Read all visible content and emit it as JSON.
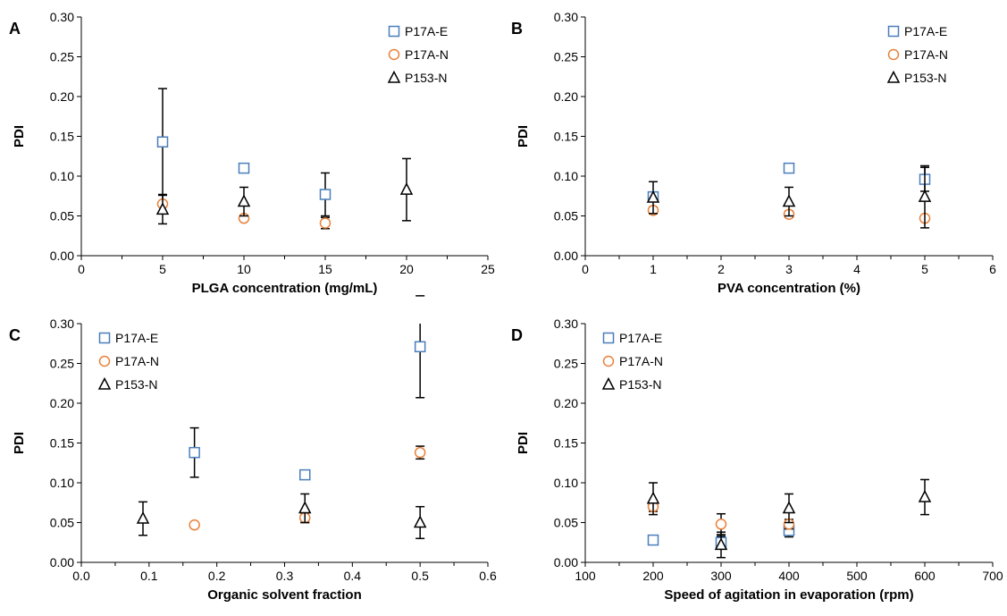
{
  "colors": {
    "P17A-E": "#4a7ebb",
    "P17A-N": "#e8813a",
    "P153-N": "#000000",
    "axis": "#000000"
  },
  "chart_data": [
    {
      "type": "scatter",
      "panel": "A",
      "xlabel": "PLGA concentration  (mg/mL)",
      "ylabel": "PDI",
      "xlim": [
        0,
        25
      ],
      "xticks": [
        0,
        5,
        10,
        15,
        20,
        25
      ],
      "xtick_labels": [
        "0",
        "5",
        "10",
        "15",
        "20",
        "25"
      ],
      "ylim": [
        0,
        0.3
      ],
      "yticks": [
        0,
        0.05,
        0.1,
        0.15,
        0.2,
        0.25,
        0.3
      ],
      "ytick_labels": [
        "0.00",
        "0.05",
        "0.10",
        "0.15",
        "0.20",
        "0.25",
        "0.30"
      ],
      "legend": "top-right",
      "series": [
        {
          "name": "P17A-E",
          "marker": "square",
          "points": [
            {
              "x": 5,
              "y": 0.143,
              "err": 0.067
            },
            {
              "x": 10,
              "y": 0.11,
              "err": 0.003
            },
            {
              "x": 15,
              "y": 0.077,
              "err": 0.027
            }
          ]
        },
        {
          "name": "P17A-N",
          "marker": "circle",
          "points": [
            {
              "x": 5,
              "y": 0.065,
              "err": 0.012
            },
            {
              "x": 10,
              "y": 0.047,
              "err": 0.003
            },
            {
              "x": 15,
              "y": 0.041,
              "err": 0.007
            }
          ]
        },
        {
          "name": "P153-N",
          "marker": "triangle",
          "points": [
            {
              "x": 5,
              "y": 0.058,
              "err": 0.018
            },
            {
              "x": 10,
              "y": 0.068,
              "err": 0.018
            },
            {
              "x": 20,
              "y": 0.083,
              "err": 0.039
            }
          ]
        }
      ]
    },
    {
      "type": "scatter",
      "panel": "B",
      "xlabel": "PVA concentration  (%)",
      "ylabel": "PDI",
      "xlim": [
        0,
        6
      ],
      "xticks": [
        0,
        1,
        2,
        3,
        4,
        5,
        6
      ],
      "xtick_labels": [
        "0",
        "1",
        "2",
        "3",
        "4",
        "5",
        "6"
      ],
      "ylim": [
        0,
        0.3
      ],
      "yticks": [
        0,
        0.05,
        0.1,
        0.15,
        0.2,
        0.25,
        0.3
      ],
      "ytick_labels": [
        "0.00",
        "0.05",
        "0.10",
        "0.15",
        "0.20",
        "0.25",
        "0.30"
      ],
      "legend": "top-right",
      "series": [
        {
          "name": "P17A-E",
          "marker": "square",
          "points": [
            {
              "x": 1,
              "y": 0.074,
              "err": 0.006
            },
            {
              "x": 3,
              "y": 0.11,
              "err": 0.003
            },
            {
              "x": 5,
              "y": 0.096,
              "err": 0.015
            }
          ]
        },
        {
          "name": "P17A-N",
          "marker": "circle",
          "points": [
            {
              "x": 1,
              "y": 0.057,
              "err": 0.004
            },
            {
              "x": 3,
              "y": 0.052,
              "err": 0.004
            },
            {
              "x": 5,
              "y": 0.047,
              "err": 0.003
            }
          ]
        },
        {
          "name": "P153-N",
          "marker": "triangle",
          "points": [
            {
              "x": 1,
              "y": 0.073,
              "err": 0.02
            },
            {
              "x": 3,
              "y": 0.068,
              "err": 0.018
            },
            {
              "x": 5,
              "y": 0.074,
              "err": 0.039
            }
          ]
        }
      ]
    },
    {
      "type": "scatter",
      "panel": "C",
      "xlabel": "Organic solvent fraction",
      "ylabel": "PDI",
      "xlim": [
        0,
        0.6
      ],
      "xticks": [
        0,
        0.1,
        0.2,
        0.3,
        0.4,
        0.5,
        0.6
      ],
      "xtick_labels": [
        "0.0",
        "0.1",
        "0.2",
        "0.3",
        "0.4",
        "0.5",
        "0.6"
      ],
      "ylim": [
        0,
        0.3
      ],
      "yticks": [
        0,
        0.05,
        0.1,
        0.15,
        0.2,
        0.25,
        0.3
      ],
      "ytick_labels": [
        "0.00",
        "0.05",
        "0.10",
        "0.15",
        "0.20",
        "0.25",
        "0.30"
      ],
      "legend": "top-left",
      "series": [
        {
          "name": "P17A-E",
          "marker": "square",
          "points": [
            {
              "x": 0.167,
              "y": 0.138,
              "err": 0.031
            },
            {
              "x": 0.33,
              "y": 0.11,
              "err": 0.003
            },
            {
              "x": 0.5,
              "y": 0.271,
              "err": 0.064
            }
          ]
        },
        {
          "name": "P17A-N",
          "marker": "circle",
          "points": [
            {
              "x": 0.167,
              "y": 0.047,
              "err": 0.003
            },
            {
              "x": 0.33,
              "y": 0.056,
              "err": 0.006
            },
            {
              "x": 0.5,
              "y": 0.138,
              "err": 0.008
            }
          ]
        },
        {
          "name": "P153-N",
          "marker": "triangle",
          "points": [
            {
              "x": 0.091,
              "y": 0.055,
              "err": 0.021
            },
            {
              "x": 0.33,
              "y": 0.068,
              "err": 0.018
            },
            {
              "x": 0.5,
              "y": 0.05,
              "err": 0.02
            }
          ]
        }
      ]
    },
    {
      "type": "scatter",
      "panel": "D",
      "xlabel": "Speed of agitation in evaporation (rpm)",
      "ylabel": "PDI",
      "xlim": [
        100,
        700
      ],
      "xticks": [
        100,
        200,
        300,
        400,
        500,
        600,
        700
      ],
      "xtick_labels": [
        "100",
        "200",
        "300",
        "400",
        "500",
        "600",
        "700"
      ],
      "ylim": [
        0,
        0.3
      ],
      "yticks": [
        0,
        0.05,
        0.1,
        0.15,
        0.2,
        0.25,
        0.3
      ],
      "ytick_labels": [
        "0.00",
        "0.05",
        "0.10",
        "0.15",
        "0.20",
        "0.25",
        "0.30"
      ],
      "legend": "top-left",
      "series": [
        {
          "name": "P17A-E",
          "marker": "square",
          "points": [
            {
              "x": 200,
              "y": 0.028,
              "err": 0.003
            },
            {
              "x": 300,
              "y": 0.025,
              "err": 0.008
            },
            {
              "x": 400,
              "y": 0.04,
              "err": 0.008
            }
          ]
        },
        {
          "name": "P17A-N",
          "marker": "circle",
          "points": [
            {
              "x": 200,
              "y": 0.07,
              "err": 0.006
            },
            {
              "x": 300,
              "y": 0.048,
              "err": 0.013
            },
            {
              "x": 400,
              "y": 0.048,
              "err": 0.006
            }
          ]
        },
        {
          "name": "P153-N",
          "marker": "triangle",
          "points": [
            {
              "x": 200,
              "y": 0.08,
              "err": 0.02
            },
            {
              "x": 300,
              "y": 0.022,
              "err": 0.016
            },
            {
              "x": 400,
              "y": 0.068,
              "err": 0.018
            },
            {
              "x": 600,
              "y": 0.082,
              "err": 0.022
            }
          ]
        }
      ]
    }
  ]
}
